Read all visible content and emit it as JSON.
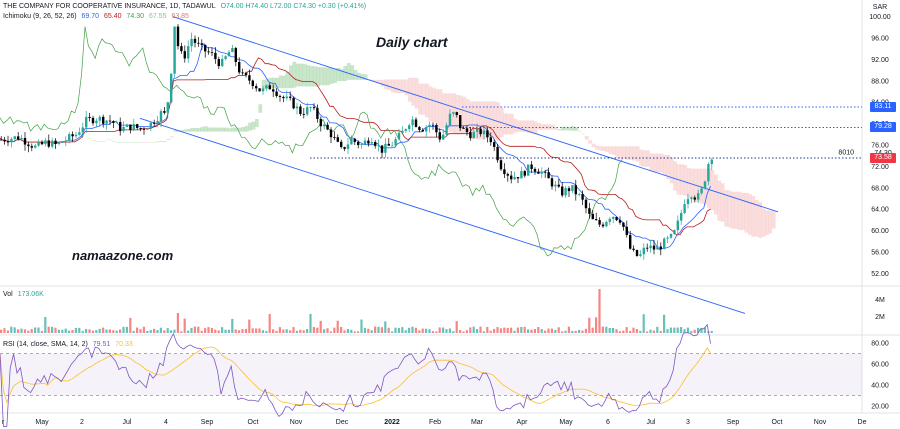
{
  "header": {
    "symbol": "THE COMPANY FOR COOPERATIVE INSURANCE, 1D, TADAWUL",
    "ohlc": "O74.00 H74.40 L72.00 C74.30 +0.30 (+0.41%)",
    "ichimoku_label": "Ichimoku (9, 26, 52, 26)",
    "ichimoku_values": [
      "69.70",
      "65.40",
      "74.30",
      "67.55",
      "63.85"
    ],
    "volume_label": "Vol",
    "volume_value": "173.06K",
    "rsi_label": "RSI (14, close, SMA, 14, 2)",
    "rsi_values": [
      "79.51",
      "70.33"
    ]
  },
  "annotations": {
    "title": "Daily chart",
    "watermark": "namaazone.com",
    "level_label": "8010"
  },
  "axis": {
    "currency": "SAR",
    "x_ticks": [
      "r",
      "May",
      "2",
      "Jul",
      "4",
      "Sep",
      "Oct",
      "Nov",
      "Dec",
      "2022",
      "Feb",
      "Mar",
      "Apr",
      "May",
      "6",
      "Jul",
      "3",
      "Sep",
      "Oct",
      "Nov",
      "De"
    ],
    "volume_ticks": [
      "4M",
      "2M"
    ],
    "rsi_ticks": [
      "80.00",
      "60.00",
      "40.00",
      "20.00"
    ]
  },
  "colors": {
    "up": "#26a69a",
    "down": "#000000",
    "conversion": "#2962ff",
    "base": "#b71c1c",
    "lagging": "#43a047",
    "cloud_bull": "#a5d6a7",
    "cloud_bear": "#f7c7c7",
    "channel": "#2962ff",
    "rsi": "#7e57c2",
    "rsi_ma": "#fbc02d",
    "tag_blue": "#2962ff",
    "tag_red": "#f23645"
  },
  "chart_data": {
    "type": "candlestick",
    "title": "Daily chart",
    "price_axis": {
      "ylim": [
        50,
        102
      ],
      "ticks": [
        52,
        56,
        60,
        64,
        68,
        72,
        76,
        80,
        84,
        88,
        92,
        96,
        100
      ]
    },
    "price_tags": [
      {
        "label": "83.11",
        "value": 83.11,
        "style": "blue"
      },
      {
        "label": "79.28",
        "value": 79.28,
        "style": "blue"
      },
      {
        "label": "74.30",
        "value": 74.3,
        "style": "plain"
      },
      {
        "label": "73.58",
        "value": 73.58,
        "style": "red"
      }
    ],
    "horizontal_levels": [
      83.11,
      79.28,
      73.58
    ],
    "path": [
      [
        0,
        77
      ],
      [
        8,
        77.2
      ],
      [
        18,
        77.5
      ],
      [
        28,
        76.3
      ],
      [
        35,
        75.5
      ],
      [
        45,
        76.5
      ],
      [
        55,
        76
      ],
      [
        65,
        77
      ],
      [
        75,
        78
      ],
      [
        85,
        80.5
      ],
      [
        95,
        81
      ],
      [
        110,
        80.5
      ],
      [
        120,
        79
      ],
      [
        130,
        79.5
      ],
      [
        140,
        79
      ],
      [
        150,
        80
      ],
      [
        160,
        82
      ],
      [
        165,
        81.5
      ],
      [
        170,
        90
      ],
      [
        173,
        99
      ],
      [
        176,
        95
      ],
      [
        182,
        92
      ],
      [
        190,
        96
      ],
      [
        200,
        94
      ],
      [
        210,
        93
      ],
      [
        220,
        91
      ],
      [
        230,
        94
      ],
      [
        240,
        89
      ],
      [
        250,
        88
      ],
      [
        260,
        86
      ],
      [
        270,
        87
      ],
      [
        280,
        85
      ],
      [
        290,
        84
      ],
      [
        300,
        82
      ],
      [
        310,
        83
      ],
      [
        320,
        80
      ],
      [
        330,
        78
      ],
      [
        340,
        75
      ],
      [
        350,
        77
      ],
      [
        360,
        76
      ],
      [
        370,
        77.5
      ],
      [
        380,
        75
      ],
      [
        390,
        76
      ],
      [
        400,
        78
      ],
      [
        410,
        81
      ],
      [
        420,
        79
      ],
      [
        430,
        80
      ],
      [
        440,
        77
      ],
      [
        450,
        82
      ],
      [
        455,
        81.5
      ],
      [
        460,
        79
      ],
      [
        470,
        78
      ],
      [
        480,
        78.5
      ],
      [
        490,
        77
      ],
      [
        500,
        72
      ],
      [
        510,
        70
      ],
      [
        520,
        70.5
      ],
      [
        530,
        72
      ],
      [
        540,
        71
      ],
      [
        550,
        69
      ],
      [
        560,
        67
      ],
      [
        570,
        68
      ],
      [
        580,
        66
      ],
      [
        590,
        62
      ],
      [
        600,
        61
      ],
      [
        610,
        63
      ],
      [
        620,
        62
      ],
      [
        630,
        56
      ],
      [
        638,
        55
      ],
      [
        645,
        57
      ],
      [
        655,
        56.5
      ],
      [
        665,
        58
      ],
      [
        672,
        59
      ],
      [
        678,
        62
      ],
      [
        684,
        66
      ],
      [
        690,
        67
      ],
      [
        696,
        66
      ],
      [
        702,
        68
      ],
      [
        706,
        72
      ],
      [
        710,
        74
      ],
      [
        713,
        74.3
      ]
    ],
    "volume": {
      "ticks": [
        "4M",
        "2M"
      ],
      "last": "173.06K"
    },
    "rsi": {
      "ylim": [
        15,
        85
      ],
      "bands": [
        70,
        30
      ],
      "ticks": [
        80,
        60,
        40,
        20
      ],
      "last": 79.51,
      "ma_last": 70.33
    }
  }
}
